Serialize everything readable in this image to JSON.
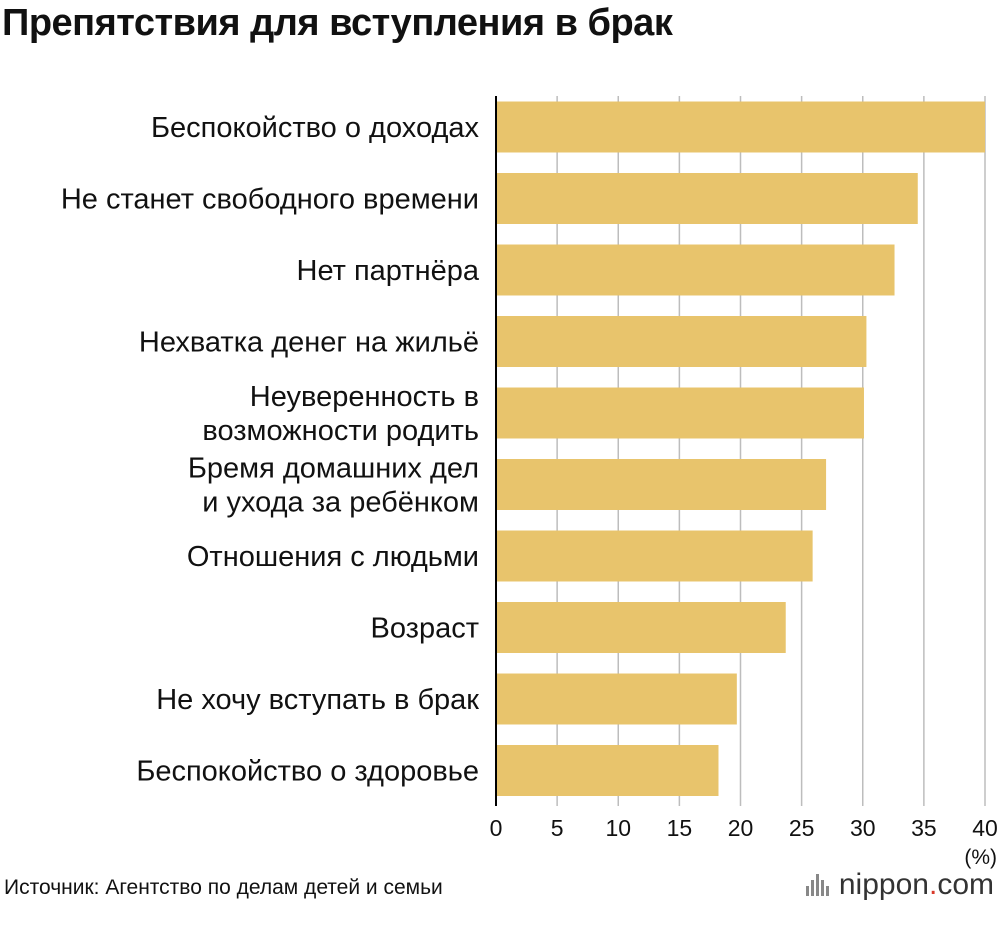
{
  "title": "Препятствия для вступления в брак",
  "source": "Источник: Агентство по делам детей и семьи",
  "logo": {
    "name": "nippon",
    "dot": ".",
    "tld": "com",
    "accent_color": "#d83a2a"
  },
  "colors": {
    "bar": "#e8c46c",
    "grid": "#bdbdbd",
    "axis": "#000000"
  },
  "chart_data": {
    "type": "bar",
    "orientation": "horizontal",
    "title": "Препятствия для вступления в брак",
    "categories": [
      "Беспокойство о доходах",
      "Не станет свободного времени",
      "Нет партнёра",
      "Нехватка денег на жильё",
      "Неуверенность в\nвозможности родить",
      "Бремя домашних дел\nи ухода за ребёнком",
      "Отношения с людьми",
      "Возраст",
      "Не хочу вступать в брак",
      "Беспокойство о здоровье"
    ],
    "values": [
      40.0,
      34.5,
      32.6,
      30.3,
      30.1,
      27.0,
      25.9,
      23.7,
      19.7,
      18.2
    ],
    "xlim": [
      0,
      40
    ],
    "xticks": [
      "0",
      "5",
      "10",
      "15",
      "20",
      "25",
      "30",
      "35",
      "40"
    ],
    "xunit": "(%)",
    "grid": true
  }
}
